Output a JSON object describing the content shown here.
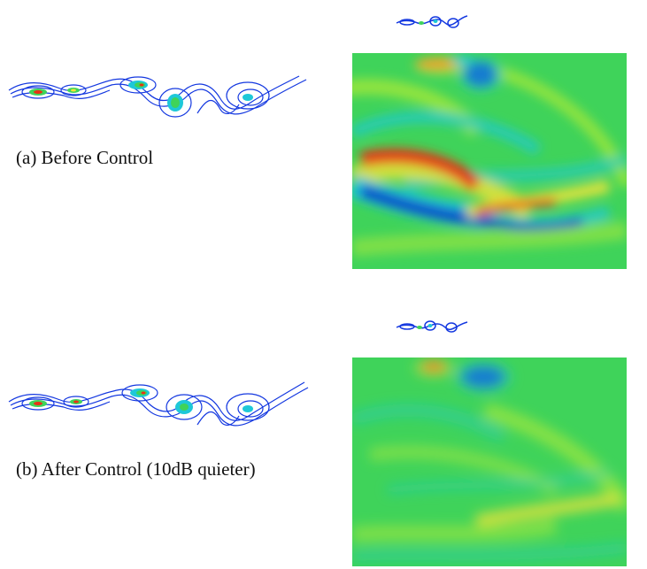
{
  "figure": {
    "panel_a": {
      "caption": "(a) Before Control"
    },
    "panel_b": {
      "caption": "(b) After Control (10dB quieter)"
    }
  },
  "colors": {
    "background": "#ffffff",
    "field_base": "#3fd35a",
    "field_light": "#a6e83a",
    "cyan": "#1ec8d8",
    "blue": "#1030c8",
    "yellow": "#f2e43a",
    "red": "#e83214",
    "contour_blue": "#1438e0"
  }
}
